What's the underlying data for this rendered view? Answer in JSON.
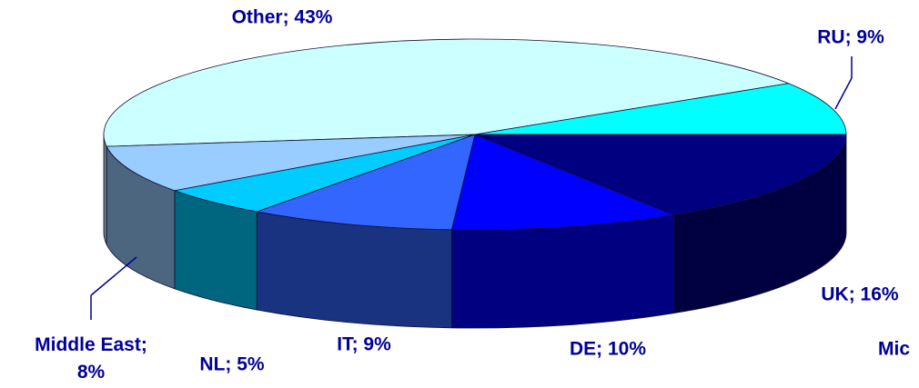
{
  "chart_data": {
    "type": "pie3d",
    "values": [
      43,
      9,
      16,
      10,
      9,
      5,
      8
    ],
    "value_labels": [
      "Other; 43%",
      "RU; 9%",
      "UK; 16%",
      "DE; 10%",
      "IT; 9%",
      "NL; 5%",
      "Middle East; 8%"
    ],
    "colors": [
      "#ccffff",
      "#00ffff",
      "#000080",
      "#0000ff",
      "#3366ff",
      "#00ccff",
      "#99ccff"
    ],
    "annotations": [
      "Mic"
    ]
  }
}
